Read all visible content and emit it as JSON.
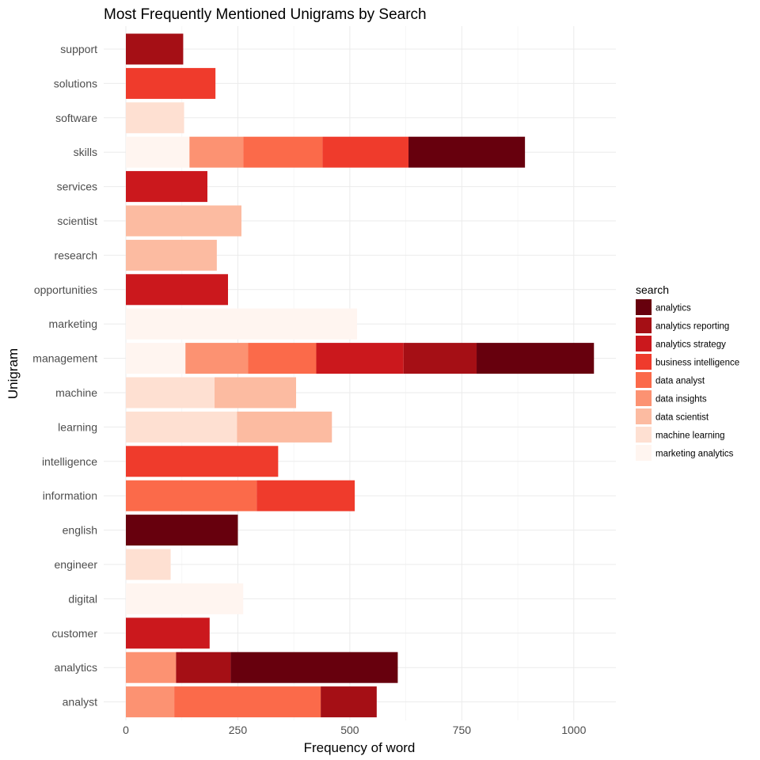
{
  "chart_data": {
    "type": "bar",
    "orientation": "horizontal",
    "stacked": true,
    "title": "Most Frequently Mentioned Unigrams by Search",
    "xlabel": "Frequency of word",
    "ylabel": "Unigram",
    "xlim": [
      0,
      1080
    ],
    "xticks": [
      0,
      250,
      500,
      750,
      1000
    ],
    "xtick_labels": [
      "0",
      "250",
      "500",
      "750",
      "1000"
    ],
    "grid": true,
    "legend_position": "right",
    "legend": {
      "title": "search",
      "entries": [
        {
          "name": "analytics",
          "color": "#67000d"
        },
        {
          "name": "analytics reporting",
          "color": "#a50f15"
        },
        {
          "name": "analytics strategy",
          "color": "#cb181d"
        },
        {
          "name": "business intelligence",
          "color": "#ef3b2c"
        },
        {
          "name": "data analyst",
          "color": "#fb6a4a"
        },
        {
          "name": "data insights",
          "color": "#fc9272"
        },
        {
          "name": "data scientist",
          "color": "#fcbba1"
        },
        {
          "name": "machine learning",
          "color": "#fee0d2"
        },
        {
          "name": "marketing analytics",
          "color": "#fff5f0"
        }
      ]
    },
    "stack_order": [
      "marketing analytics",
      "machine learning",
      "data scientist",
      "data insights",
      "data analyst",
      "business intelligence",
      "analytics strategy",
      "analytics reporting",
      "analytics"
    ],
    "categories": [
      "support",
      "solutions",
      "software",
      "skills",
      "services",
      "scientist",
      "research",
      "opportunities",
      "marketing",
      "management",
      "machine",
      "learning",
      "intelligence",
      "information",
      "english",
      "engineer",
      "digital",
      "customer",
      "analytics",
      "analyst"
    ],
    "data": {
      "support": {
        "analytics reporting": 128
      },
      "solutions": {
        "business intelligence": 200
      },
      "software": {
        "machine learning": 130
      },
      "skills": {
        "marketing analytics": 142,
        "data insights": 120,
        "data analyst": 177,
        "business intelligence": 192,
        "analytics": 260
      },
      "services": {
        "analytics strategy": 182
      },
      "scientist": {
        "data scientist": 258
      },
      "research": {
        "data scientist": 203
      },
      "opportunities": {
        "analytics strategy": 228
      },
      "marketing": {
        "marketing analytics": 516
      },
      "management": {
        "marketing analytics": 133,
        "data insights": 140,
        "data analyst": 152,
        "analytics strategy": 195,
        "analytics reporting": 163,
        "analytics": 262
      },
      "machine": {
        "machine learning": 198,
        "data scientist": 182
      },
      "learning": {
        "machine learning": 248,
        "data scientist": 212
      },
      "intelligence": {
        "business intelligence": 340
      },
      "information": {
        "data analyst": 292,
        "business intelligence": 219
      },
      "english": {
        "analytics": 250
      },
      "engineer": {
        "machine learning": 100
      },
      "digital": {
        "marketing analytics": 262
      },
      "customer": {
        "analytics strategy": 187
      },
      "analytics": {
        "data insights": 112,
        "analytics reporting": 122,
        "analytics": 373
      },
      "analyst": {
        "data insights": 108,
        "data analyst": 327,
        "analytics reporting": 125
      }
    }
  }
}
